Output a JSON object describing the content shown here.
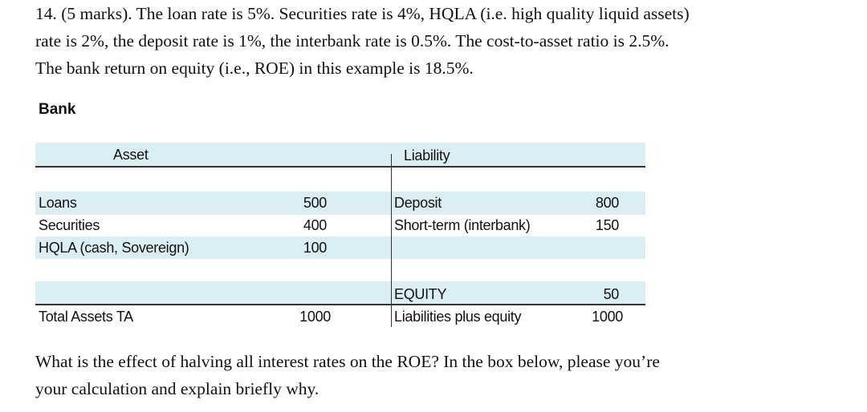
{
  "question": {
    "line1": "14. (5 marks). The loan rate is 5%. Securities rate is 4%, HQLA (i.e. high quality liquid assets)",
    "line2": "rate is 2%, the deposit rate is 1%, the interbank rate is 0.5%. The cost-to-asset ratio is 2.5%.",
    "line3": "The bank return on equity (i.e., ROE) in this example is 18.5%."
  },
  "section_label": "Bank",
  "table": {
    "asset_header": "Asset",
    "liability_header": "Liability",
    "assets": [
      {
        "label": "Loans",
        "value": "500"
      },
      {
        "label": "Securities",
        "value": "400"
      },
      {
        "label": "HQLA (cash, Sovereign)",
        "value": "100"
      }
    ],
    "liabilities": [
      {
        "label": "Deposit",
        "value": "800"
      },
      {
        "label": "Short-term (interbank)",
        "value": "150"
      }
    ],
    "equity": {
      "label": "EQUITY",
      "value": "50"
    },
    "total_assets": {
      "label": "Total Assets TA",
      "value": "1000"
    },
    "total_liabilities": {
      "label": "Liabilities plus equity",
      "value": "1000"
    },
    "band_color": "#daeef3"
  },
  "followup": {
    "line1": "What is the effect of halving all interest rates on the ROE? In the box below, please you’re",
    "line2": "your calculation and explain briefly why."
  }
}
